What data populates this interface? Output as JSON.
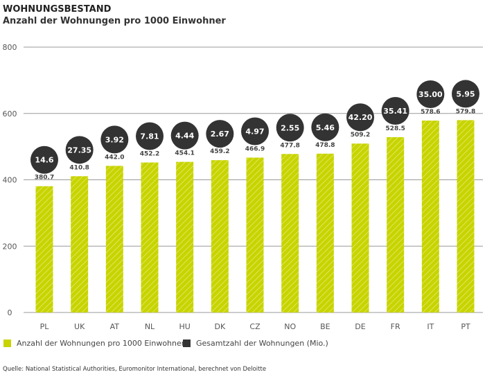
{
  "chart_data": {
    "type": "bar",
    "title": "WOHNUNGSBESTAND",
    "subtitle": "Anzahl der Wohnungen pro 1000 Einwohner",
    "categories": [
      "PL",
      "UK",
      "AT",
      "NL",
      "HU",
      "DK",
      "CZ",
      "NO",
      "BE",
      "DE",
      "FR",
      "IT",
      "PT"
    ],
    "series": [
      {
        "name": "Anzahl der Wohnungen pro 1000 Einwohner",
        "values": [
          380.7,
          410.8,
          442.0,
          452.2,
          454.1,
          459.2,
          466.9,
          477.8,
          478.8,
          509.2,
          528.5,
          578.6,
          579.8
        ],
        "labels": [
          "380.7",
          "410.8",
          "442.0",
          "452.2",
          "454.1",
          "459.2",
          "466.9",
          "477.8",
          "478.8",
          "509.2",
          "528.5",
          "578.6",
          "579.8"
        ],
        "color": "#c8d400"
      },
      {
        "name": "Gesamtzahl der Wohnungen (Mio.)",
        "values": [
          14.6,
          27.35,
          3.92,
          7.81,
          4.44,
          2.67,
          4.97,
          2.55,
          5.46,
          42.2,
          35.41,
          35.0,
          5.95
        ],
        "labels": [
          "14.6",
          "27.35",
          "3.92",
          "7.81",
          "4.44",
          "2.67",
          "4.97",
          "2.55",
          "5.46",
          "42.20",
          "35.41",
          "35.00",
          "5.95"
        ],
        "color": "#333333"
      }
    ],
    "yticks": [
      "0",
      "200",
      "400",
      "600",
      "800"
    ],
    "ylim": [
      0,
      800
    ],
    "grid": true,
    "legend": "bottom-left"
  },
  "source": "Quelle: National Statistical Authorities, Euromonitor International, berechnet von Deloitte"
}
